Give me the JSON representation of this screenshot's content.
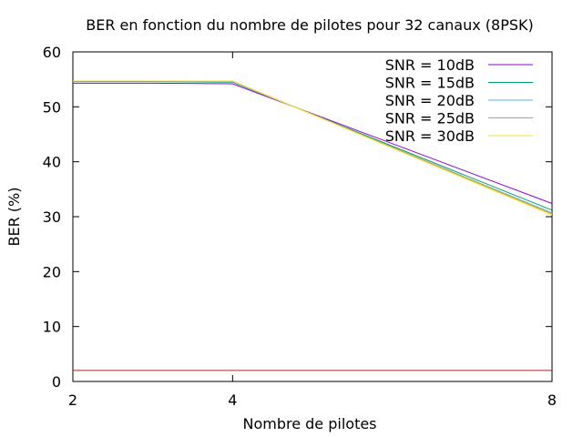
{
  "chart_data": {
    "type": "line",
    "title": "BER en fonction du nombre de pilotes pour 32 canaux (8PSK)",
    "xlabel": "Nombre de pilotes",
    "ylabel": "BER (%)",
    "xlim": [
      2,
      8
    ],
    "ylim": [
      0,
      60
    ],
    "xticks": [
      2,
      4,
      8
    ],
    "yticks": [
      0,
      10,
      20,
      30,
      40,
      50,
      60
    ],
    "grid": false,
    "legend_position": "top-right",
    "series": [
      {
        "name": "SNR = 10dB",
        "color": "#9400d3",
        "x": [
          2,
          3,
          4,
          8
        ],
        "y": [
          54.3,
          54.3,
          54.2,
          32.4
        ]
      },
      {
        "name": "SNR = 15dB",
        "color": "#009e73",
        "x": [
          2,
          3,
          4,
          8
        ],
        "y": [
          54.6,
          54.6,
          54.5,
          31.2
        ]
      },
      {
        "name": "SNR = 20dB",
        "color": "#56b4e9",
        "x": [
          2,
          3,
          4,
          8
        ],
        "y": [
          54.7,
          54.7,
          54.6,
          30.7
        ]
      },
      {
        "name": "SNR = 25dB",
        "color": "#e69f00",
        "x": [
          2,
          3,
          4,
          8
        ],
        "y": [
          54.7,
          54.7,
          54.7,
          30.5
        ]
      },
      {
        "name": "SNR = 30dB",
        "color": "#f0e442",
        "x": [
          2,
          3,
          4,
          8
        ],
        "y": [
          54.7,
          54.7,
          54.7,
          30.3
        ]
      },
      {
        "color": "#b22222",
        "x": [
          2,
          8
        ],
        "y": [
          2,
          2
        ]
      }
    ]
  }
}
